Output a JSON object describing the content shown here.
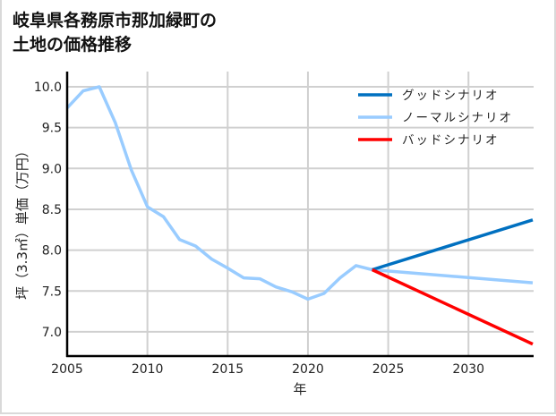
{
  "title_line1": "岐阜県各務原市那加緑町の",
  "title_line2": "土地の価格推移",
  "chart_data": {
    "type": "line",
    "title": "岐阜県各務原市那加緑町の土地の価格推移",
    "xlabel": "年",
    "ylabel": "坪（3.3㎡）単価（万円）",
    "xlim": [
      2005,
      2034
    ],
    "ylim": [
      6.7,
      10.15
    ],
    "xticks": [
      2005,
      2010,
      2015,
      2020,
      2025,
      2030
    ],
    "yticks": [
      7.0,
      7.5,
      8.0,
      8.5,
      9.0,
      9.5,
      10.0
    ],
    "xtick_labels": [
      "2005",
      "2010",
      "2015",
      "2020",
      "2025",
      "2030"
    ],
    "ytick_labels": [
      "7.0",
      "7.5",
      "8.0",
      "8.5",
      "9.0",
      "9.5",
      "10.0"
    ],
    "grid": true,
    "legend_position": "upper right",
    "series": [
      {
        "name": "グッドシナリオ",
        "color": "#0070c0",
        "x": [
          2024,
          2034
        ],
        "values": [
          7.76,
          8.37
        ]
      },
      {
        "name": "ノーマルシナリオ",
        "color": "#99ccff",
        "x": [
          2005,
          2006,
          2007,
          2008,
          2009,
          2010,
          2011,
          2012,
          2013,
          2014,
          2015,
          2016,
          2017,
          2018,
          2019,
          2020,
          2021,
          2022,
          2023,
          2024,
          2034
        ],
        "values": [
          9.74,
          9.95,
          10.0,
          9.56,
          8.98,
          8.53,
          8.41,
          8.13,
          8.05,
          7.89,
          7.78,
          7.66,
          7.65,
          7.55,
          7.49,
          7.4,
          7.47,
          7.66,
          7.81,
          7.76,
          7.6
        ]
      },
      {
        "name": "バッドシナリオ",
        "color": "#ff0000",
        "x": [
          2024,
          2034
        ],
        "values": [
          7.76,
          6.85
        ]
      }
    ]
  }
}
